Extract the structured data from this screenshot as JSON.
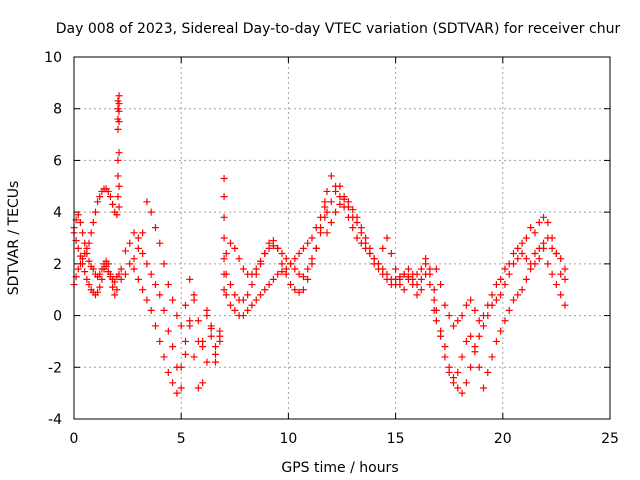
{
  "chart_data": {
    "type": "scatter",
    "title": "Day 008 of 2023, Sidereal Day-to-day VTEC variation (SDTVAR) for receiver chur",
    "xlabel": "GPS time / hours",
    "ylabel": "SDTVAR / TECUs",
    "xlim": [
      0,
      25
    ],
    "ylim": [
      -4,
      10
    ],
    "xticks": [
      0,
      5,
      10,
      15,
      20,
      25
    ],
    "yticks": [
      -4,
      -2,
      0,
      2,
      4,
      6,
      8,
      10
    ],
    "grid": true,
    "legend": "none",
    "marker": "+",
    "series": [
      {
        "name": "SDTVAR",
        "color": "#ff0000",
        "x": [
          0.0,
          0.1,
          0.2,
          0.3,
          0.4,
          0.5,
          0.6,
          0.7,
          0.8,
          0.9,
          1.0,
          1.1,
          1.2,
          1.3,
          1.4,
          1.5,
          1.6,
          1.7,
          1.8,
          1.9,
          2.0,
          2.1,
          0.0,
          0.1,
          0.2,
          0.3,
          0.4,
          0.5,
          0.6,
          0.7,
          0.8,
          0.9,
          1.0,
          1.1,
          1.2,
          1.3,
          1.4,
          1.5,
          1.6,
          1.7,
          1.8,
          1.9,
          2.0,
          0.0,
          0.1,
          0.2,
          0.3,
          0.4,
          0.5,
          0.6,
          0.7,
          0.8,
          0.9,
          1.0,
          1.1,
          1.2,
          1.3,
          1.4,
          1.5,
          1.6,
          1.7,
          1.8,
          1.9,
          2.0,
          2.05,
          2.05,
          2.05,
          2.05,
          2.05,
          2.05,
          2.05,
          2.1,
          2.1,
          2.1,
          2.1,
          2.1,
          2.1,
          2.1,
          2.2,
          2.4,
          2.6,
          2.8,
          3.0,
          3.2,
          3.4,
          3.6,
          3.8,
          4.0,
          4.2,
          4.4,
          4.6,
          4.8,
          5.0,
          5.2,
          5.4,
          5.6,
          5.8,
          6.0,
          6.2,
          6.4,
          6.6,
          6.8,
          2.2,
          2.4,
          2.6,
          2.8,
          3.0,
          3.2,
          3.4,
          3.6,
          3.8,
          4.0,
          4.2,
          4.4,
          4.6,
          4.8,
          5.0,
          5.2,
          5.4,
          5.6,
          5.8,
          6.0,
          6.2,
          6.4,
          6.6,
          6.8,
          2.8,
          3.0,
          3.2,
          3.4,
          3.6,
          3.8,
          4.0,
          4.2,
          4.4,
          4.6,
          4.8,
          5.0,
          5.2,
          5.4,
          5.6,
          5.8,
          6.0,
          6.2,
          6.4,
          6.6,
          6.8,
          7.0,
          7.0,
          7.0,
          7.0,
          7.0,
          7.0,
          7.0,
          7.1,
          7.3,
          7.5,
          7.7,
          7.9,
          8.1,
          8.3,
          8.5,
          8.7,
          8.9,
          9.1,
          9.3,
          9.5,
          9.7,
          9.9,
          10.1,
          10.3,
          10.5,
          10.7,
          10.9,
          11.1,
          11.3,
          11.5,
          11.7,
          7.1,
          7.3,
          7.5,
          7.7,
          7.9,
          8.1,
          8.3,
          8.5,
          8.7,
          8.9,
          9.1,
          9.3,
          9.5,
          9.7,
          9.9,
          10.1,
          10.3,
          10.5,
          10.7,
          10.9,
          11.1,
          11.3,
          11.5,
          11.7,
          7.1,
          7.3,
          7.5,
          7.7,
          7.9,
          8.1,
          8.3,
          8.5,
          8.7,
          8.9,
          9.1,
          9.3,
          9.5,
          9.7,
          9.9,
          10.1,
          10.3,
          10.5,
          10.7,
          10.9,
          11.1,
          11.3,
          11.5,
          11.7,
          11.8,
          12.0,
          12.2,
          12.4,
          12.6,
          12.8,
          13.0,
          13.2,
          13.4,
          13.6,
          13.8,
          14.0,
          14.2,
          14.4,
          14.6,
          14.8,
          15.0,
          15.2,
          15.4,
          15.6,
          15.8,
          16.0,
          16.2,
          16.4,
          16.6,
          16.8,
          11.8,
          12.0,
          12.2,
          12.4,
          12.6,
          12.8,
          13.0,
          13.2,
          13.4,
          13.6,
          13.8,
          14.0,
          14.2,
          14.4,
          14.6,
          14.8,
          15.0,
          15.2,
          15.4,
          15.6,
          15.8,
          16.0,
          16.2,
          16.4,
          16.6,
          16.8,
          11.8,
          12.0,
          12.2,
          12.4,
          12.6,
          12.8,
          13.0,
          13.2,
          13.4,
          13.6,
          13.8,
          14.0,
          14.2,
          14.4,
          14.6,
          14.8,
          15.0,
          15.2,
          15.4,
          15.6,
          15.8,
          16.0,
          16.2,
          16.4,
          16.6,
          16.8,
          16.9,
          17.1,
          17.3,
          17.5,
          17.7,
          17.9,
          18.1,
          18.3,
          18.5,
          18.7,
          18.9,
          19.1,
          19.3,
          19.5,
          19.7,
          19.9,
          20.1,
          20.3,
          20.5,
          20.7,
          20.9,
          21.1,
          21.3,
          21.5,
          21.7,
          21.9,
          22.1,
          22.3,
          22.5,
          22.7,
          22.9,
          16.9,
          17.1,
          17.3,
          17.5,
          17.7,
          17.9,
          18.1,
          18.3,
          18.5,
          18.7,
          18.9,
          19.1,
          19.3,
          19.5,
          19.7,
          19.9,
          20.1,
          20.3,
          20.5,
          20.7,
          20.9,
          21.1,
          21.3,
          21.5,
          21.7,
          21.9,
          22.1,
          22.3,
          22.5,
          22.7,
          22.9,
          16.9,
          17.1,
          17.3,
          17.5,
          17.7,
          17.9,
          18.1,
          18.3,
          18.5,
          18.7,
          18.9,
          19.1,
          19.3,
          19.5,
          19.7,
          19.9,
          20.1,
          20.3,
          20.5,
          20.7,
          20.9,
          21.1,
          21.3,
          21.5,
          21.7,
          21.9,
          22.1,
          22.3,
          22.5,
          22.7,
          22.9
        ],
        "y": [
          3.4,
          3.7,
          3.9,
          3.6,
          3.2,
          2.8,
          2.4,
          2.1,
          1.9,
          1.8,
          1.6,
          1.5,
          1.6,
          1.8,
          2.0,
          1.9,
          1.7,
          1.5,
          1.4,
          1.3,
          1.5,
          1.6,
          1.2,
          1.5,
          1.8,
          2.0,
          2.2,
          2.4,
          2.6,
          2.8,
          3.2,
          3.6,
          4.0,
          4.4,
          4.6,
          4.8,
          4.9,
          4.9,
          4.8,
          4.6,
          4.3,
          4.0,
          3.9,
          3.2,
          2.9,
          2.6,
          2.3,
          2.0,
          1.7,
          1.4,
          1.2,
          1.0,
          0.9,
          0.8,
          0.9,
          1.1,
          1.4,
          1.8,
          2.1,
          2.0,
          1.6,
          1.1,
          0.8,
          1.0,
          7.2,
          7.6,
          8.0,
          8.3,
          6.0,
          5.4,
          4.6,
          7.9,
          8.5,
          8.2,
          7.5,
          6.3,
          5.0,
          4.2,
          1.8,
          2.5,
          2.8,
          3.2,
          3.0,
          2.4,
          2.0,
          1.6,
          1.2,
          0.8,
          0.2,
          -0.6,
          -1.2,
          -2.0,
          -2.8,
          -1.5,
          -0.4,
          0.8,
          -1.0,
          -2.6,
          -1.8,
          -0.8,
          -1.2,
          -0.6,
          1.4,
          1.6,
          2.0,
          1.8,
          1.4,
          1.0,
          0.6,
          0.2,
          -0.4,
          -1.0,
          -1.6,
          -2.2,
          -2.6,
          -3.0,
          -2.0,
          -1.0,
          -0.2,
          -1.6,
          -2.8,
          -1.0,
          0.0,
          -0.5,
          -1.5,
          -1.0,
          2.2,
          2.6,
          3.2,
          4.4,
          4.0,
          3.4,
          2.8,
          2.0,
          1.2,
          0.6,
          0.0,
          -0.4,
          0.4,
          1.4,
          0.6,
          -0.2,
          -1.2,
          0.2,
          -0.4,
          -1.8,
          -0.8,
          5.3,
          4.6,
          3.8,
          3.0,
          2.2,
          1.6,
          1.0,
          2.4,
          2.8,
          2.6,
          2.2,
          1.8,
          1.6,
          1.6,
          1.8,
          2.1,
          2.4,
          2.6,
          2.7,
          2.6,
          2.4,
          2.2,
          2.0,
          1.8,
          1.6,
          1.5,
          1.8,
          2.2,
          2.6,
          3.2,
          3.8,
          1.6,
          1.2,
          0.8,
          0.6,
          0.6,
          0.8,
          1.2,
          1.6,
          2.0,
          2.4,
          2.8,
          2.9,
          2.6,
          2.0,
          1.6,
          1.2,
          1.0,
          0.9,
          1.0,
          1.4,
          2.0,
          2.6,
          3.4,
          4.4,
          0.8,
          0.4,
          0.2,
          0.0,
          0.0,
          0.2,
          0.4,
          0.6,
          0.8,
          1.0,
          1.2,
          1.4,
          1.6,
          1.7,
          1.8,
          2.0,
          2.2,
          2.4,
          2.6,
          2.8,
          3.0,
          3.4,
          3.8,
          4.2,
          4.8,
          5.4,
          5.0,
          4.6,
          4.2,
          3.8,
          3.4,
          3.0,
          2.8,
          2.6,
          2.4,
          2.2,
          2.0,
          1.8,
          1.6,
          1.4,
          1.4,
          1.5,
          1.6,
          1.5,
          1.4,
          1.6,
          1.8,
          2.0,
          1.6,
          1.0,
          4.0,
          4.4,
          4.8,
          5.0,
          4.6,
          4.2,
          3.8,
          3.6,
          3.2,
          2.8,
          2.4,
          2.0,
          1.8,
          1.6,
          1.4,
          1.2,
          1.2,
          1.4,
          1.6,
          1.8,
          1.6,
          1.2,
          1.4,
          2.2,
          1.8,
          0.6,
          3.2,
          3.6,
          4.0,
          4.3,
          4.5,
          4.4,
          4.1,
          3.8,
          3.4,
          3.0,
          2.6,
          2.2,
          2.0,
          2.6,
          3.0,
          2.4,
          1.8,
          1.2,
          1.0,
          1.4,
          1.2,
          0.8,
          1.0,
          1.6,
          1.2,
          0.2,
          0.2,
          -0.6,
          -1.2,
          -2.2,
          -2.6,
          -2.8,
          -3.0,
          -2.6,
          -2.0,
          -1.4,
          -0.8,
          -0.4,
          0.0,
          0.4,
          0.6,
          0.8,
          1.2,
          1.6,
          2.0,
          2.2,
          2.4,
          2.2,
          2.0,
          2.4,
          2.6,
          2.8,
          3.0,
          2.6,
          2.4,
          2.2,
          1.8,
          -0.2,
          -0.8,
          -1.6,
          -2.0,
          -2.4,
          -2.2,
          -1.6,
          -1.0,
          -0.8,
          -1.2,
          -2.0,
          -2.8,
          -2.2,
          -1.6,
          -1.0,
          -0.6,
          -0.2,
          0.2,
          0.6,
          0.8,
          1.0,
          1.4,
          1.8,
          2.0,
          2.2,
          2.6,
          2.0,
          1.6,
          1.2,
          0.8,
          0.4,
          1.8,
          1.2,
          0.4,
          0.0,
          -0.4,
          -0.2,
          0.0,
          0.4,
          0.6,
          0.2,
          -0.2,
          0.0,
          0.4,
          0.8,
          1.2,
          1.4,
          1.8,
          2.0,
          2.4,
          2.6,
          2.8,
          3.0,
          3.4,
          3.2,
          3.6,
          3.8,
          3.6,
          3.0,
          2.4,
          1.6,
          1.4
        ]
      }
    ]
  }
}
